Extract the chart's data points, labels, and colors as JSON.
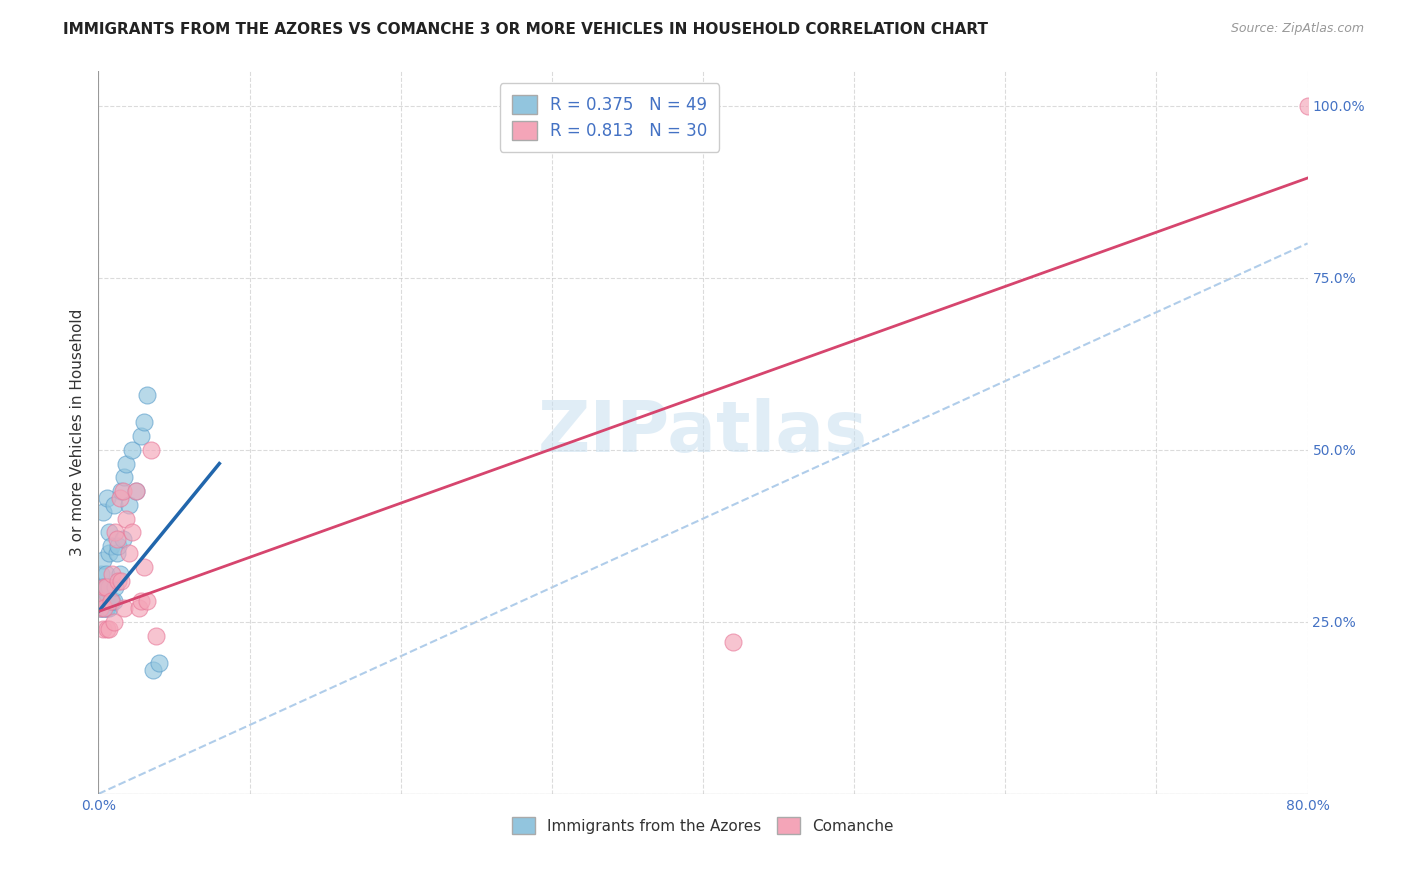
{
  "title": "IMMIGRANTS FROM THE AZORES VS COMANCHE 3 OR MORE VEHICLES IN HOUSEHOLD CORRELATION CHART",
  "source": "Source: ZipAtlas.com",
  "ylabel": "3 or more Vehicles in Household",
  "xmin": 0.0,
  "xmax": 0.8,
  "ymin": 0.0,
  "ymax": 1.05,
  "x_ticks": [
    0.0,
    0.1,
    0.2,
    0.3,
    0.4,
    0.5,
    0.6,
    0.7,
    0.8
  ],
  "y_ticks": [
    0.0,
    0.25,
    0.5,
    0.75,
    1.0
  ],
  "right_y_labels": [
    "",
    "25.0%",
    "50.0%",
    "75.0%",
    "100.0%"
  ],
  "blue_color": "#92c5de",
  "pink_color": "#f4a5b8",
  "blue_edge_color": "#5fa0cc",
  "pink_edge_color": "#e87a9a",
  "blue_line_color": "#2166ac",
  "pink_line_color": "#d6456e",
  "diag_color": "#a8c8e8",
  "watermark": "ZIPatlas",
  "legend_bottom1": "Immigrants from the Azores",
  "legend_bottom2": "Comanche",
  "azores_x": [
    0.001,
    0.001,
    0.001,
    0.002,
    0.002,
    0.002,
    0.002,
    0.003,
    0.003,
    0.003,
    0.003,
    0.003,
    0.004,
    0.004,
    0.004,
    0.004,
    0.005,
    0.005,
    0.005,
    0.005,
    0.006,
    0.006,
    0.006,
    0.006,
    0.007,
    0.007,
    0.007,
    0.007,
    0.008,
    0.008,
    0.009,
    0.01,
    0.01,
    0.011,
    0.012,
    0.013,
    0.014,
    0.015,
    0.016,
    0.017,
    0.018,
    0.02,
    0.022,
    0.025,
    0.028,
    0.03,
    0.032,
    0.036,
    0.04
  ],
  "azores_y": [
    0.27,
    0.29,
    0.3,
    0.27,
    0.28,
    0.3,
    0.32,
    0.27,
    0.28,
    0.3,
    0.34,
    0.41,
    0.27,
    0.28,
    0.29,
    0.3,
    0.27,
    0.28,
    0.3,
    0.32,
    0.27,
    0.29,
    0.3,
    0.43,
    0.27,
    0.3,
    0.35,
    0.38,
    0.28,
    0.36,
    0.28,
    0.28,
    0.42,
    0.3,
    0.35,
    0.36,
    0.32,
    0.44,
    0.37,
    0.46,
    0.48,
    0.42,
    0.5,
    0.44,
    0.52,
    0.54,
    0.58,
    0.18,
    0.19
  ],
  "comanche_x": [
    0.001,
    0.002,
    0.003,
    0.004,
    0.004,
    0.005,
    0.006,
    0.007,
    0.008,
    0.009,
    0.01,
    0.011,
    0.012,
    0.013,
    0.014,
    0.015,
    0.016,
    0.017,
    0.018,
    0.02,
    0.022,
    0.025,
    0.027,
    0.028,
    0.03,
    0.032,
    0.035,
    0.038,
    0.42,
    0.8
  ],
  "comanche_y": [
    0.27,
    0.28,
    0.24,
    0.27,
    0.3,
    0.3,
    0.24,
    0.24,
    0.28,
    0.32,
    0.25,
    0.38,
    0.37,
    0.31,
    0.43,
    0.31,
    0.44,
    0.27,
    0.4,
    0.35,
    0.38,
    0.44,
    0.27,
    0.28,
    0.33,
    0.28,
    0.5,
    0.23,
    0.22,
    1.0
  ],
  "blue_line_x": [
    0.0,
    0.08
  ],
  "blue_line_y": [
    0.265,
    0.48
  ],
  "pink_line_x": [
    0.0,
    0.8
  ],
  "pink_line_y": [
    0.265,
    0.895
  ],
  "diag_line_x": [
    0.0,
    0.8
  ],
  "diag_line_y": [
    0.0,
    0.8
  ],
  "background_color": "#ffffff",
  "grid_color": "#cccccc",
  "title_fontsize": 11,
  "axis_label_fontsize": 11,
  "tick_fontsize": 10,
  "source_fontsize": 9,
  "watermark_fontsize": 52,
  "watermark_color": "#c8dff0",
  "watermark_alpha": 0.55
}
